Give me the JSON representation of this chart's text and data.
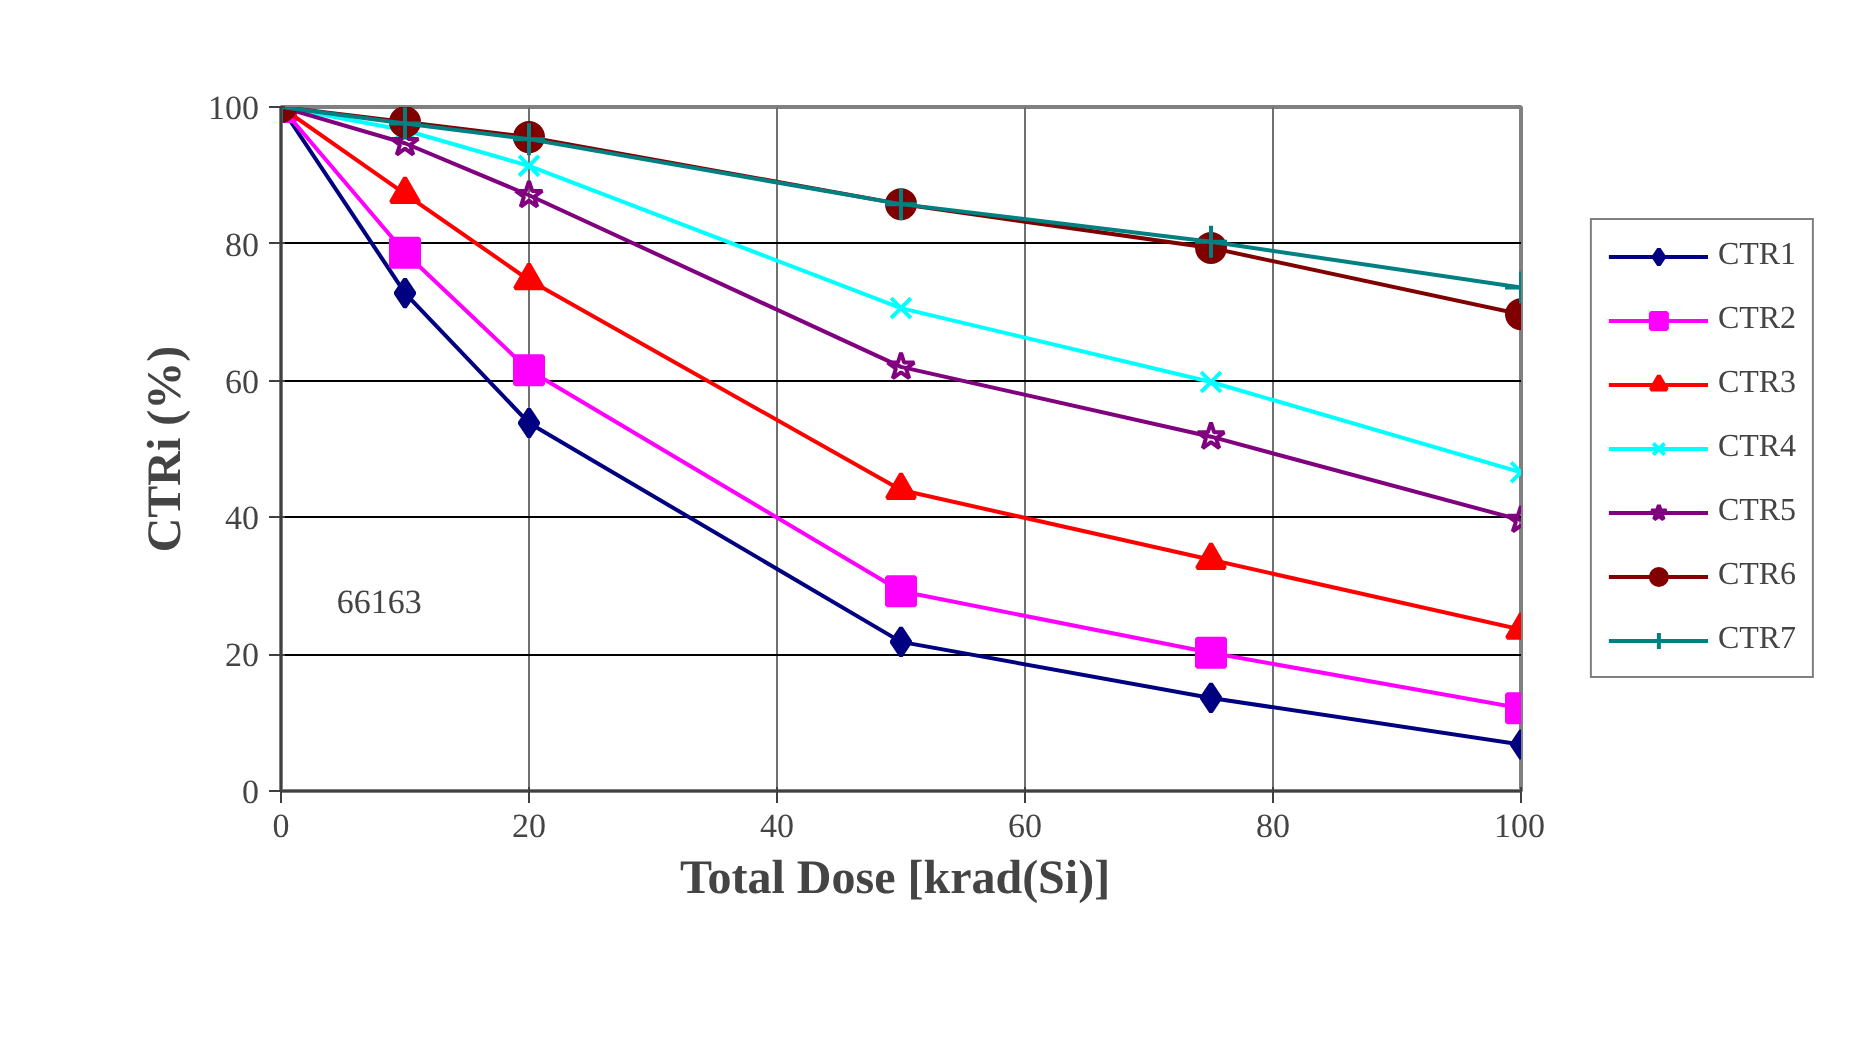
{
  "chart_data": {
    "type": "line",
    "xlabel": "Total Dose  [krad(Si)]",
    "ylabel": "CTRi (%)",
    "x": [
      0,
      10,
      20,
      50,
      75,
      100
    ],
    "xlim": [
      0,
      100
    ],
    "xticks": [
      0,
      20,
      40,
      60,
      80,
      100
    ],
    "ylim": [
      0,
      100
    ],
    "yticks": [
      0,
      20,
      40,
      60,
      80,
      100
    ],
    "grid": true,
    "legend": "right",
    "line_style": "solid",
    "annotations": [
      "66163"
    ],
    "series": [
      {
        "name": "CTR1",
        "color": "#000080",
        "marker": "diamond",
        "values": [
          100,
          72.8,
          53.8,
          21.8,
          13.6,
          6.8
        ]
      },
      {
        "name": "CTR2",
        "color": "#ff00ff",
        "marker": "square",
        "values": [
          100,
          78.7,
          61.5,
          29.2,
          20.2,
          12.1
        ]
      },
      {
        "name": "CTR3",
        "color": "#ff0000",
        "marker": "triangle",
        "values": [
          100,
          87.3,
          74.7,
          44,
          33.8,
          23.6
        ]
      },
      {
        "name": "CTR4",
        "color": "#00ffff",
        "marker": "x",
        "values": [
          100,
          96.6,
          91.4,
          70.6,
          59.8,
          46.6
        ]
      },
      {
        "name": "CTR5",
        "color": "#800080",
        "marker": "star",
        "values": [
          100,
          94.7,
          87.1,
          62,
          51.8,
          39.6
        ]
      },
      {
        "name": "CTR6",
        "color": "#800000",
        "marker": "circle",
        "values": [
          100,
          97.8,
          95.6,
          85.8,
          79.4,
          69.7
        ]
      },
      {
        "name": "CTR7",
        "color": "#008080",
        "marker": "cross",
        "values": [
          100,
          97.6,
          95.3,
          85.8,
          80.3,
          73.6
        ]
      }
    ]
  }
}
